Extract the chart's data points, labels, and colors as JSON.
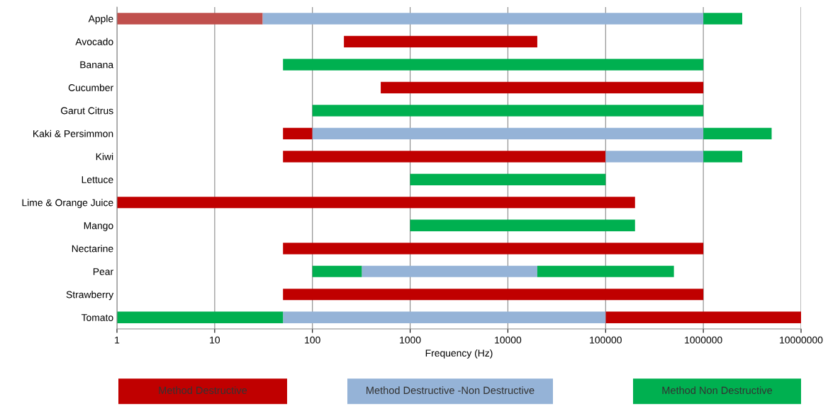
{
  "chart_data": {
    "type": "bar",
    "orientation": "horizontal",
    "xlabel": "Frequency (Hz)",
    "categories": [
      "Apple",
      "Avocado",
      "Banana",
      "Cucumber",
      "Garut Citrus",
      "Kaki & Persimmon",
      "Kiwi",
      "Lettuce",
      "Lime & Orange Juice",
      "Mango",
      "Nectarine",
      "Pear",
      "Strawberry",
      "Tomato"
    ],
    "series": [
      {
        "name": "Method Destructive",
        "color": "#c00000",
        "colors": [
          "#c0504d",
          "#c00000",
          "#c00000",
          "#c00000",
          "#c00000",
          "#c00000",
          "#c00000",
          "#c00000",
          "#c00000",
          "#c00000",
          "#c00000",
          "#c00000",
          "#c00000",
          "#c00000"
        ],
        "base": [
          1,
          210,
          null,
          500,
          null,
          50,
          50,
          null,
          1,
          null,
          50,
          null,
          50,
          100000
        ],
        "values": [
          30,
          19790,
          null,
          999500,
          null,
          50,
          99950,
          null,
          199999,
          null,
          999950,
          null,
          999950,
          9900000
        ]
      },
      {
        "name": "Method Destructive -Non Destructive",
        "color": "#95b3d7",
        "base": [
          31,
          null,
          null,
          null,
          null,
          100,
          100000,
          null,
          null,
          null,
          null,
          320,
          null,
          50
        ],
        "values": [
          999969,
          null,
          null,
          null,
          null,
          999900,
          900000,
          null,
          null,
          null,
          null,
          19680,
          null,
          99950
        ]
      },
      {
        "name": "Method Non Destructive",
        "color": "#00b050",
        "base": [
          1000000,
          null,
          50,
          null,
          100,
          1000000,
          1000000,
          1000,
          null,
          1000,
          null,
          100,
          null,
          1
        ],
        "values": [
          1500000,
          null,
          999950,
          null,
          999900,
          4000000,
          1500000,
          99000,
          null,
          199000,
          null,
          220,
          null,
          49
        ]
      },
      {
        "color": "#00b050",
        "base": [
          null,
          null,
          null,
          null,
          null,
          null,
          null,
          null,
          null,
          null,
          null,
          20000,
          null,
          null
        ],
        "values": [
          null,
          null,
          null,
          null,
          null,
          null,
          null,
          null,
          null,
          null,
          null,
          480000,
          null,
          null
        ]
      }
    ],
    "log": "x",
    "xlim": [
      1,
      10000000
    ],
    "xticks": [
      1,
      10,
      100,
      1000,
      10000,
      100000,
      1000000,
      10000000
    ],
    "grid": "x",
    "legend": "bottom"
  }
}
